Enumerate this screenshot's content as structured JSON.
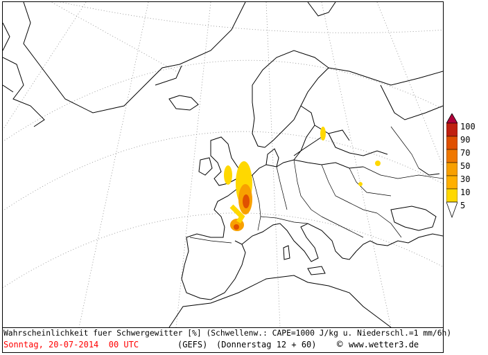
{
  "legend": {
    "labels": [
      "100",
      "90",
      "70",
      "50",
      "30",
      "10",
      "5"
    ],
    "colors": [
      "#b0003a",
      "#c02010",
      "#e05000",
      "#f07800",
      "#f8a000",
      "#ffd800",
      "#ffff40"
    ]
  },
  "footer": {
    "line1": "Wahrscheinlichkeit fuer Schwergewitter [%] (Schwellenw.: CAPE=1000 J/kg u. Niederschl.=1 mm/6h)",
    "date": "Sonntag, 20-07-2014  00 UTC",
    "model": "(GEFS)",
    "forecast": "(Donnerstag 12 + 60)",
    "copyright_symbol": "©",
    "site": "www.wetter3.de"
  },
  "colors": {
    "date_text": "#ff0000",
    "border": "#000000"
  }
}
